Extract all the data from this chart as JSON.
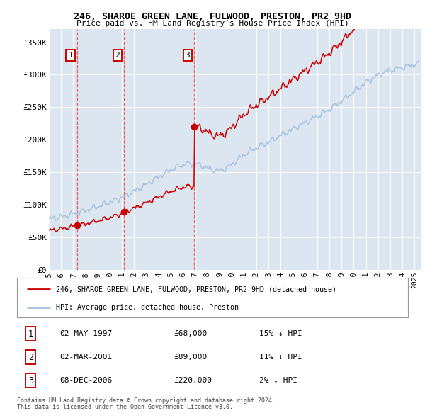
{
  "title": "246, SHAROE GREEN LANE, FULWOOD, PRESTON, PR2 9HD",
  "subtitle": "Price paid vs. HM Land Registry’s House Price Index (HPI)",
  "ylim": [
    0,
    370000
  ],
  "xlim_start": 1995.0,
  "xlim_end": 2025.5,
  "yticks": [
    0,
    50000,
    100000,
    150000,
    200000,
    250000,
    300000,
    350000
  ],
  "ytick_labels": [
    "£0",
    "£50K",
    "£100K",
    "£150K",
    "£200K",
    "£250K",
    "£300K",
    "£350K"
  ],
  "xticks": [
    1995,
    1996,
    1997,
    1998,
    1999,
    2000,
    2001,
    2002,
    2003,
    2004,
    2005,
    2006,
    2007,
    2008,
    2009,
    2010,
    2011,
    2012,
    2013,
    2014,
    2015,
    2016,
    2017,
    2018,
    2019,
    2020,
    2021,
    2022,
    2023,
    2024,
    2025
  ],
  "bg_color": "#dce6f0",
  "grid_color": "#ffffff",
  "hpi_color": "#aac4e0",
  "price_color": "#cc0000",
  "sale_vline_color": "#ee4444",
  "sales": [
    {
      "num": 1,
      "year": 1997.33,
      "price": 68000,
      "date": "02-MAY-1997",
      "pct": "15%",
      "label": "£68,000"
    },
    {
      "num": 2,
      "year": 2001.17,
      "price": 89000,
      "date": "02-MAR-2001",
      "pct": "11%",
      "label": "£89,000"
    },
    {
      "num": 3,
      "year": 2006.92,
      "price": 220000,
      "date": "08-DEC-2006",
      "pct": "2%",
      "label": "£220,000"
    }
  ],
  "legend_line1": "246, SHAROE GREEN LANE, FULWOOD, PRESTON, PR2 9HD (detached house)",
  "legend_line2": "HPI: Average price, detached house, Preston",
  "footer1": "Contains HM Land Registry data © Crown copyright and database right 2024.",
  "footer2": "This data is licensed under the Open Government Licence v3.0."
}
